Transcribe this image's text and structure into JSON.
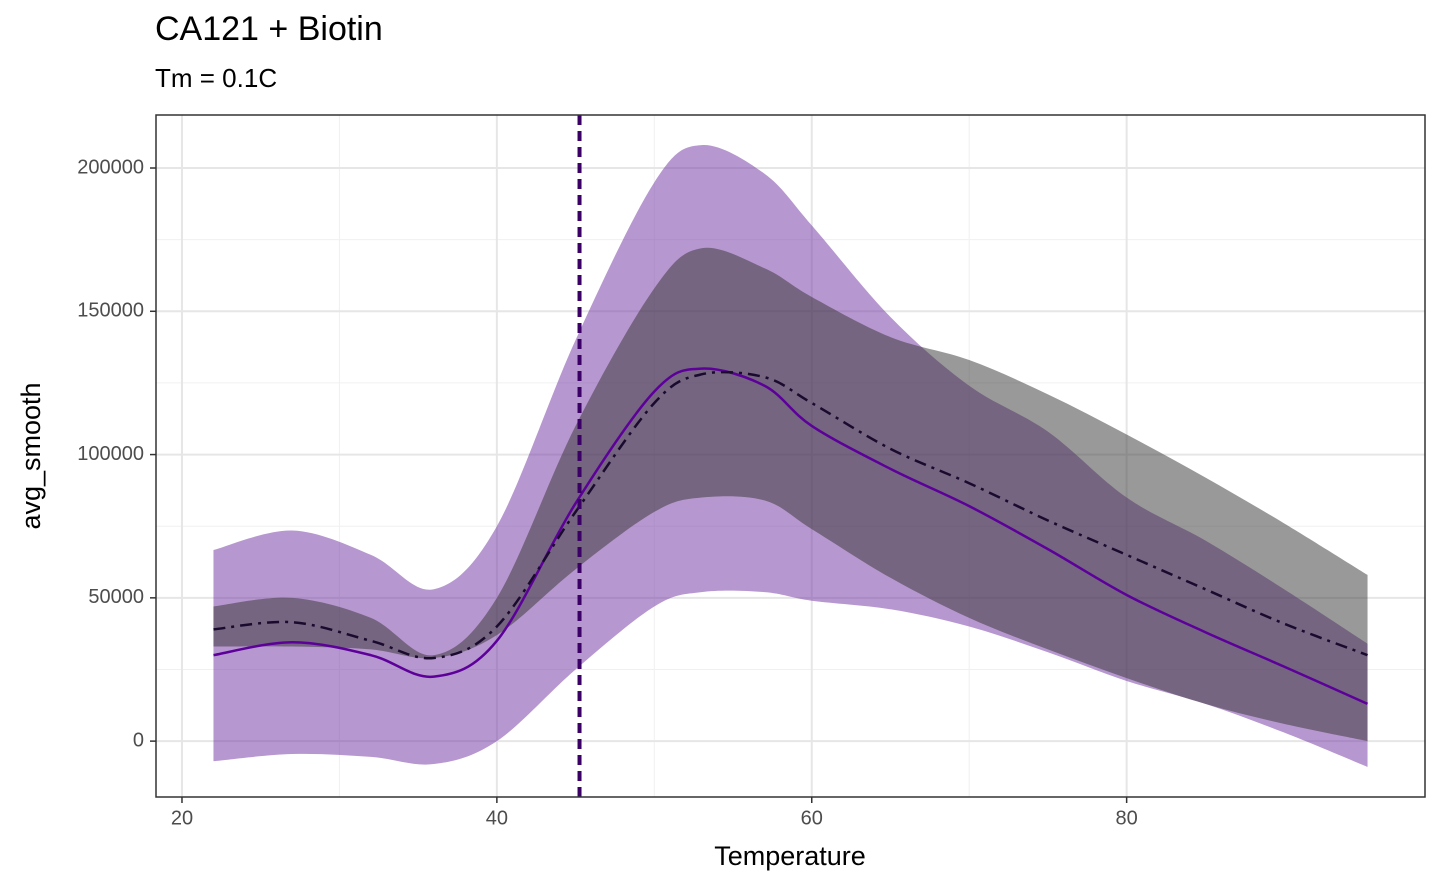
{
  "chart_data": {
    "type": "ribbon-line",
    "title": "CA121 + Biotin",
    "subtitle": "Tm = 0.1C",
    "x_label": "Temperature",
    "y_label": "avg_smooth",
    "xlim": [
      18.35,
      98.95
    ],
    "ylim": [
      -19500,
      218500
    ],
    "xticks": [
      20,
      40,
      60,
      80
    ],
    "yticks": [
      0,
      50000,
      100000,
      150000,
      200000
    ],
    "grid": true,
    "x": [
      22,
      27,
      32,
      36,
      40,
      45,
      50,
      53,
      57,
      60,
      65,
      70,
      75,
      80,
      85,
      90,
      95.3
    ],
    "ribbons": [
      {
        "color": "#7030a0",
        "upper": [
          66700,
          73500,
          65000,
          53000,
          75000,
          140000,
          195000,
          208000,
          198000,
          180000,
          148000,
          124000,
          108000,
          85000,
          70000,
          53000,
          34000
        ],
        "lower": [
          -7000,
          -4500,
          -5500,
          -8000,
          0,
          25000,
          47000,
          52000,
          52000,
          49000,
          46000,
          40000,
          31000,
          21000,
          13000,
          3000,
          -9000
        ]
      },
      {
        "color": "#333333",
        "upper": [
          47000,
          50000,
          43000,
          30000,
          50000,
          110000,
          158000,
          172000,
          165000,
          155000,
          141000,
          133000,
          121000,
          107000,
          92000,
          76000,
          58000
        ],
        "lower": [
          33000,
          33000,
          32000,
          29000,
          37000,
          60000,
          80000,
          85000,
          84000,
          74000,
          57000,
          43000,
          32000,
          22000,
          13000,
          6000,
          0
        ]
      }
    ],
    "lines": [
      {
        "color": "#5c0099",
        "dash": "none",
        "values": [
          30000,
          34500,
          30000,
          22500,
          35000,
          83000,
          122000,
          130000,
          124000,
          110000,
          95000,
          82000,
          67000,
          51000,
          38000,
          26000,
          13000
        ]
      },
      {
        "color": "#1a0a2e",
        "dash": "12 6 3 6",
        "values": [
          39000,
          41500,
          35000,
          29000,
          40000,
          80000,
          118000,
          128000,
          127000,
          118000,
          102000,
          90000,
          77000,
          65000,
          53000,
          41000,
          30000
        ]
      }
    ],
    "vline": {
      "x": 45.25,
      "color": "#3a0066",
      "dash": "10 6"
    }
  }
}
